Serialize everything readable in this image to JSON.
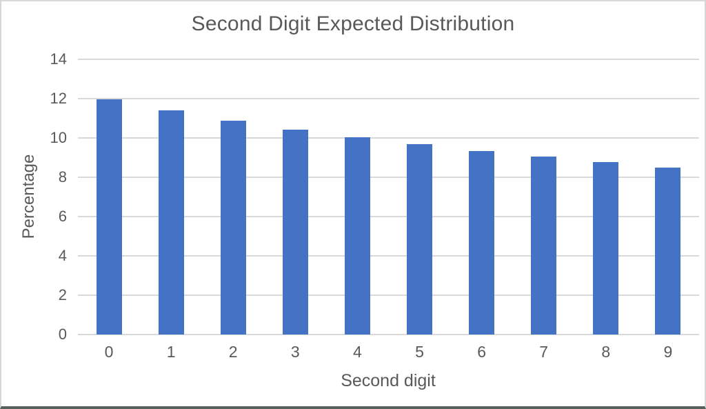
{
  "chart_data": {
    "type": "bar",
    "title": "Second Digit Expected Distribution",
    "xlabel": "Second digit",
    "ylabel": "Percentage",
    "categories": [
      "0",
      "1",
      "2",
      "3",
      "4",
      "5",
      "6",
      "7",
      "8",
      "9"
    ],
    "values": [
      11.97,
      11.39,
      10.88,
      10.43,
      10.03,
      9.67,
      9.34,
      9.04,
      8.76,
      8.5
    ],
    "ylim": [
      0,
      14
    ],
    "ytick_interval": 2,
    "ytick_labels": [
      "0",
      "2",
      "4",
      "6",
      "8",
      "10",
      "12",
      "14"
    ],
    "grid": "horizontal",
    "legend": "none",
    "bar_color": "#4472C4",
    "gridline_color": "#D9D9D9",
    "text_color": "#595959"
  }
}
